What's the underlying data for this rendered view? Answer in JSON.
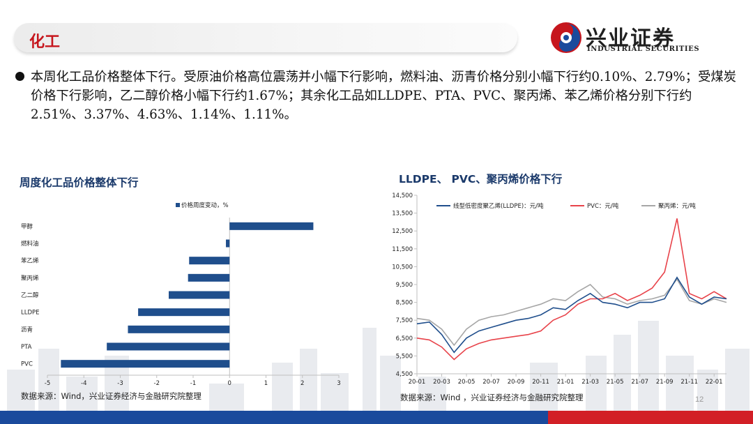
{
  "header": {
    "title": "化工"
  },
  "logo": {
    "name_cn": "兴业证券",
    "name_en": "INDUSTRIAL SECURITIES"
  },
  "bullet": {
    "text": "本周化工品价格整体下行。受原油价格高位震荡并小幅下行影响，燃料油、沥青价格分别小幅下行约0.10%、2.79%；受煤炭价格下行影响，乙二醇价格小幅下行约1.67%；其余化工品如LLDPE、PTA、PVC、聚丙烯、苯乙烯价格分别下行约2.51%、3.37%、4.63%、1.14%、1.11%。"
  },
  "left_chart": {
    "title": "周度化工品价格整体下行",
    "source": "数据来源：Wind，兴业证券经济与金融研究院整理"
  },
  "right_chart": {
    "title": "LLDPE、 PVC、聚丙烯价格下行",
    "source": "数据来源：Wind ，兴业证券经济与金融研究院整理"
  },
  "page_number": "12",
  "colors": {
    "accent_red": "#c6161d",
    "navy": "#1b3a6b",
    "bar": "#1f4e8c",
    "lldpe": "#1f4e8c",
    "pvc": "#e8434a",
    "pp": "#a6a6a6"
  },
  "chart_data": [
    {
      "type": "bar",
      "orientation": "horizontal",
      "categories": [
        "甲醇",
        "燃料油",
        "苯乙烯",
        "聚丙烯",
        "乙二醇",
        "LLDPE",
        "沥青",
        "PTA",
        "PVC"
      ],
      "series": [
        {
          "name": "价格周度变动，%",
          "values": [
            2.3,
            -0.1,
            -1.11,
            -1.14,
            -1.67,
            -2.51,
            -2.79,
            -3.37,
            -4.63
          ]
        }
      ],
      "xlim": [
        -5,
        3
      ],
      "xticks": [
        -5,
        -4,
        -3,
        -2,
        -1,
        0,
        1,
        2,
        3
      ],
      "legend": "top-center"
    },
    {
      "type": "line",
      "x": [
        "20-01",
        "20-02",
        "20-03",
        "20-04",
        "20-05",
        "20-06",
        "20-07",
        "20-08",
        "20-09",
        "20-10",
        "20-11",
        "20-12",
        "21-01",
        "21-02",
        "21-03",
        "21-04",
        "21-05",
        "21-06",
        "21-07",
        "21-08",
        "21-09",
        "21-10",
        "21-11",
        "21-12",
        "22-01",
        "22-02"
      ],
      "xticks": [
        "20-01",
        "20-03",
        "20-05",
        "20-07",
        "20-09",
        "20-11",
        "21-01",
        "21-03",
        "21-05",
        "21-07",
        "21-09",
        "21-11",
        "22-01"
      ],
      "ylim": [
        4500,
        14500
      ],
      "yticks": [
        "4,500",
        "5,500",
        "6,500",
        "7,500",
        "8,500",
        "9,500",
        "10,500",
        "11,500",
        "12,500",
        "13,500",
        "14,500"
      ],
      "legend": "top",
      "series": [
        {
          "name": "线型低密度聚乙烯(LLDPE)：元/吨",
          "values": [
            7300,
            7400,
            6700,
            5700,
            6500,
            6900,
            7100,
            7300,
            7500,
            7600,
            7800,
            8200,
            8100,
            8600,
            9000,
            8500,
            8400,
            8200,
            8500,
            8500,
            8700,
            9900,
            8800,
            8400,
            8800,
            8700
          ]
        },
        {
          "name": "PVC：元/吨",
          "values": [
            6500,
            6400,
            6000,
            5300,
            5900,
            6200,
            6400,
            6500,
            6600,
            6700,
            6900,
            7500,
            7800,
            8400,
            8700,
            8700,
            9000,
            8600,
            8900,
            9300,
            10200,
            13200,
            9000,
            8700,
            9100,
            8700
          ]
        },
        {
          "name": "聚丙烯：元/吨",
          "values": [
            7600,
            7500,
            7000,
            6100,
            7000,
            7500,
            7700,
            7800,
            8000,
            8200,
            8400,
            8700,
            8600,
            9100,
            9500,
            8800,
            8700,
            8400,
            8600,
            8700,
            8900,
            9800,
            8600,
            8400,
            8700,
            8500
          ]
        }
      ]
    }
  ]
}
